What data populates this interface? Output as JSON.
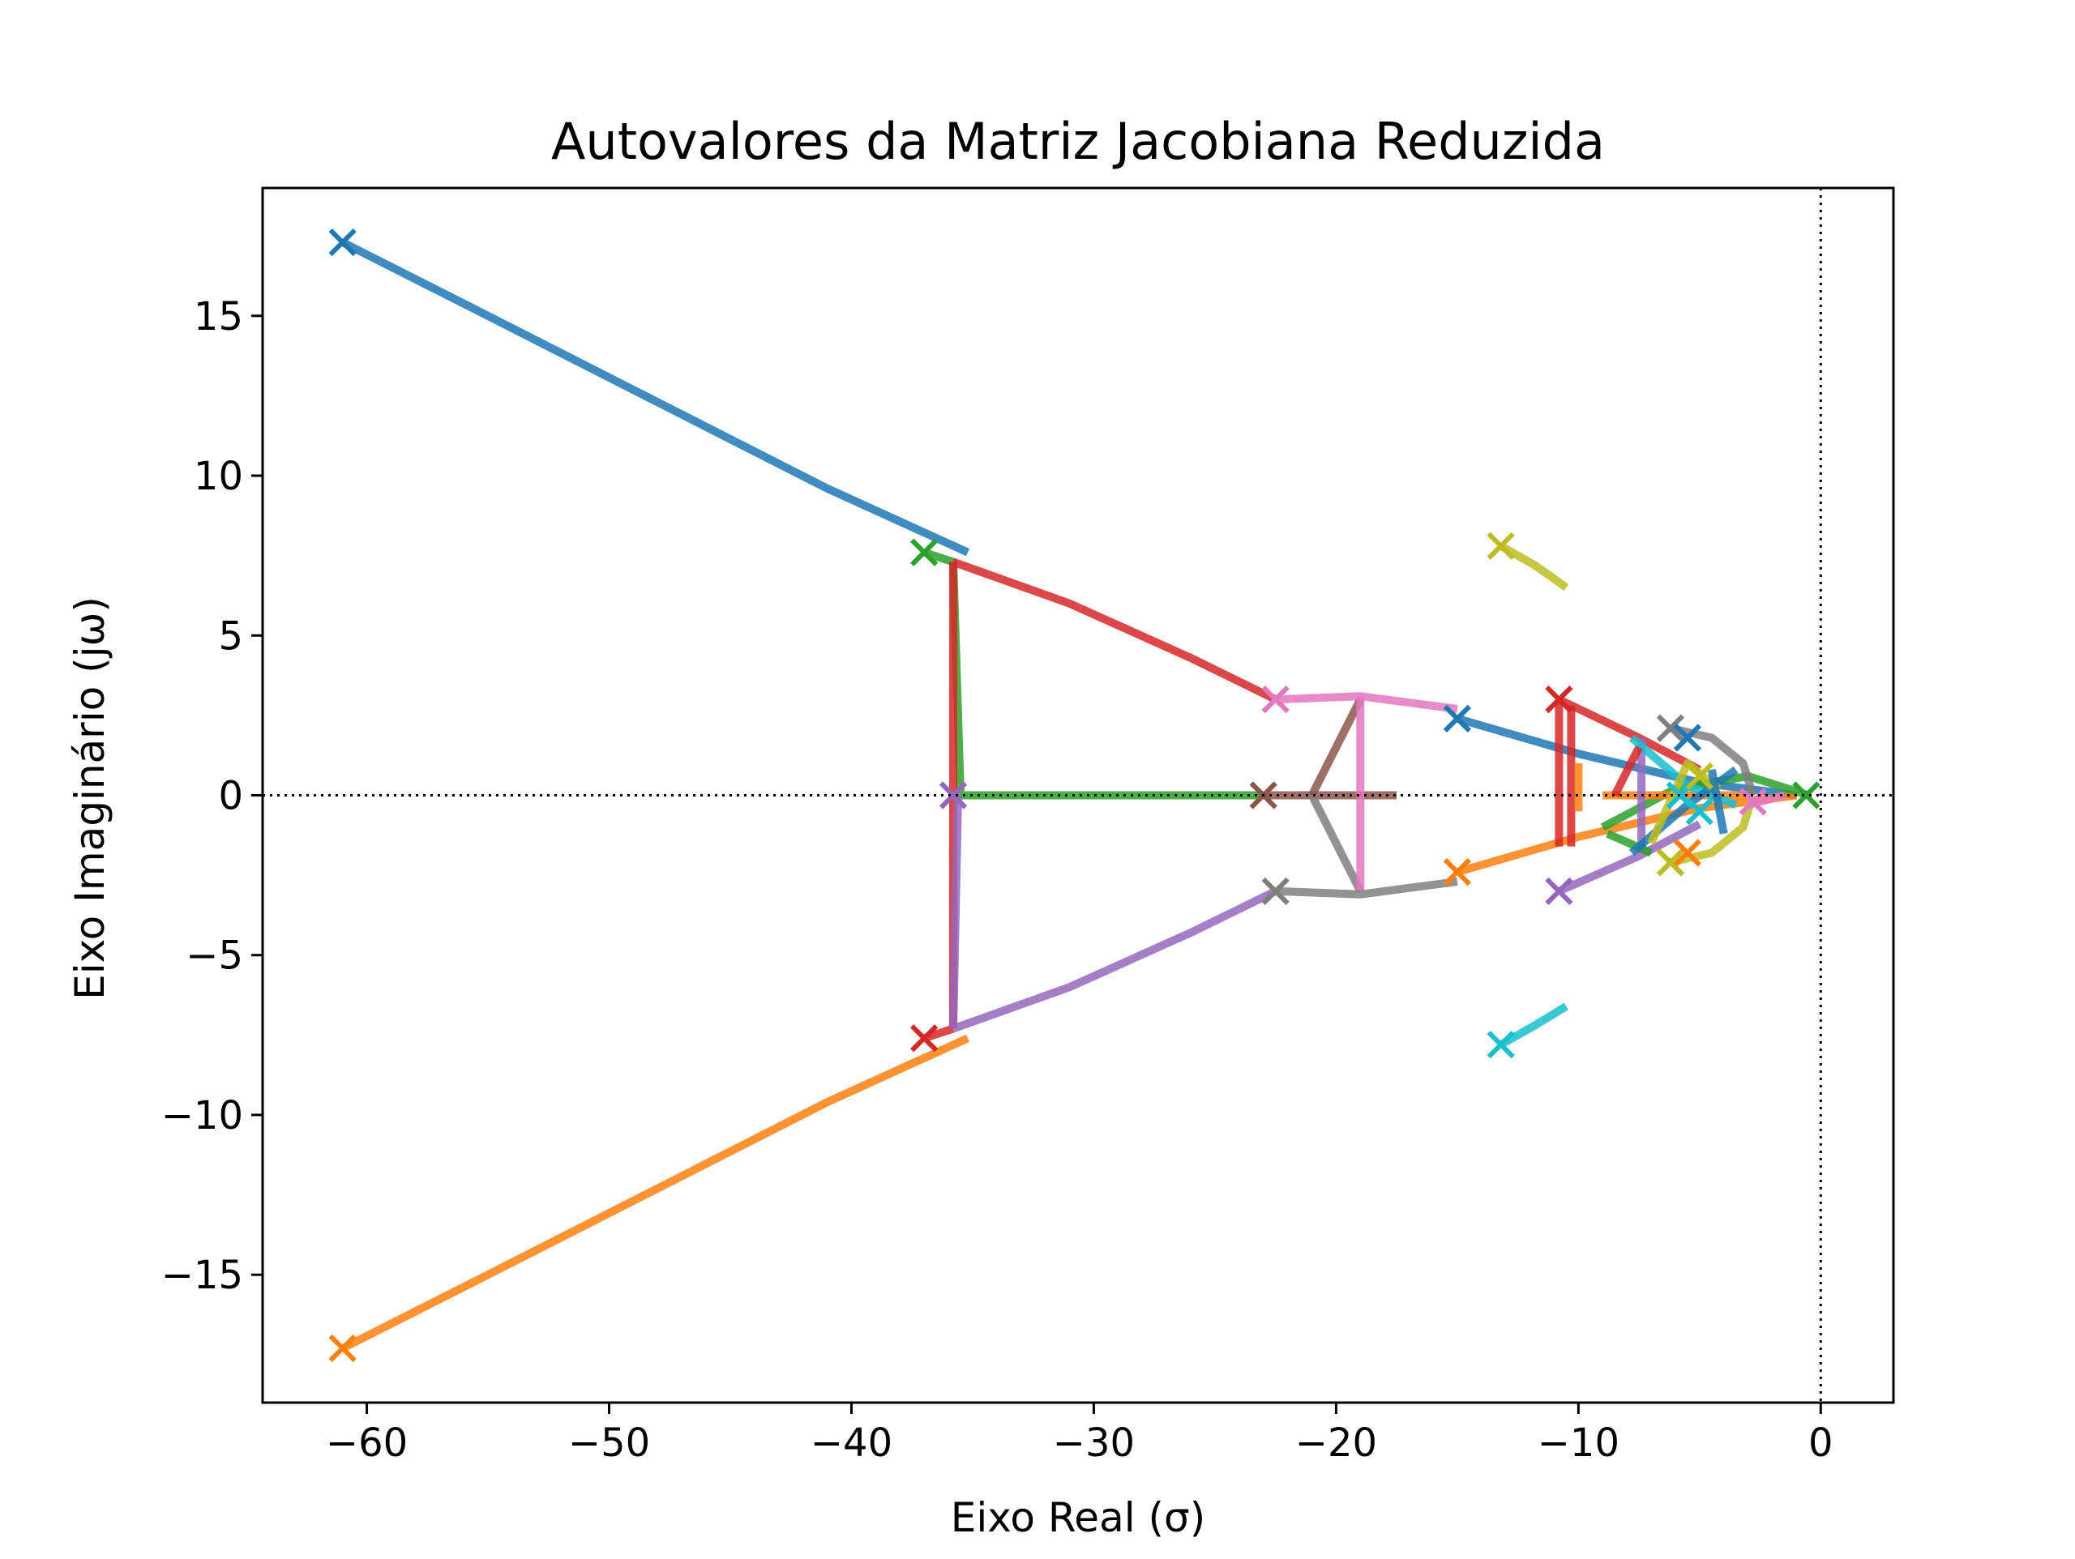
{
  "chart_data": {
    "type": "line",
    "title": "Autovalores da Matriz Jacobiana Reduzida",
    "xlabel": "Eixo Real (σ)",
    "ylabel": "Eixo Imaginário (jω)",
    "xlim": [
      -64.3,
      3.0
    ],
    "ylim": [
      -19.0,
      19.0
    ],
    "xticks": [
      -60,
      -50,
      -40,
      -30,
      -20,
      -10,
      0
    ],
    "xtick_labels": [
      "−60",
      "−50",
      "−40",
      "−30",
      "−20",
      "−10",
      "0"
    ],
    "yticks": [
      -15,
      -10,
      -5,
      0,
      5,
      10,
      15
    ],
    "ytick_labels": [
      "−15",
      "−10",
      "−5",
      "0",
      "5",
      "10",
      "15"
    ],
    "grid": false,
    "reference_lines": [
      {
        "axis": "y",
        "value": 0,
        "style": "dotted"
      },
      {
        "axis": "x",
        "value": 0,
        "style": "dotted"
      }
    ],
    "colors": [
      "#1f77b4",
      "#ff7f0e",
      "#2ca02c",
      "#d62728",
      "#9467bd",
      "#8c564b",
      "#e377c2",
      "#7f7f7f",
      "#bcbd22",
      "#17becf"
    ],
    "series": [
      {
        "color": "#1f77b4",
        "points": [
          [
            -61.0,
            17.3
          ],
          [
            -55.0,
            15.0
          ],
          [
            -48.0,
            12.3
          ],
          [
            -41.0,
            9.6
          ],
          [
            -35.2,
            7.6
          ]
        ]
      },
      {
        "color": "#ff7f0e",
        "points": [
          [
            -61.0,
            -17.3
          ],
          [
            -55.0,
            -15.0
          ],
          [
            -48.0,
            -12.3
          ],
          [
            -41.0,
            -9.6
          ],
          [
            -35.2,
            -7.6
          ]
        ]
      },
      {
        "color": "#2ca02c",
        "points": [
          [
            -37.0,
            7.6
          ],
          [
            -35.8,
            7.3
          ],
          [
            -35.5,
            0.0
          ],
          [
            -23.0,
            0.0
          ]
        ]
      },
      {
        "color": "#d62728",
        "points": [
          [
            -35.8,
            7.3
          ],
          [
            -35.8,
            -7.3
          ]
        ]
      },
      {
        "color": "#d62728",
        "points": [
          [
            -35.8,
            7.3
          ],
          [
            -31.0,
            6.0
          ],
          [
            -26.0,
            4.3
          ],
          [
            -22.5,
            3.0
          ]
        ]
      },
      {
        "color": "#d62728",
        "points": [
          [
            -37.0,
            -7.6
          ],
          [
            -35.8,
            -7.3
          ]
        ]
      },
      {
        "color": "#9467bd",
        "points": [
          [
            -35.8,
            -7.3
          ],
          [
            -35.6,
            0.0
          ]
        ]
      },
      {
        "color": "#9467bd",
        "points": [
          [
            -35.8,
            -7.3
          ],
          [
            -31.0,
            -6.0
          ],
          [
            -26.0,
            -4.3
          ],
          [
            -22.5,
            -3.0
          ]
        ]
      },
      {
        "color": "#8c564b",
        "points": [
          [
            -23.0,
            0.0
          ],
          [
            -17.5,
            0.0
          ]
        ]
      },
      {
        "color": "#8c564b",
        "points": [
          [
            -21.0,
            0.0
          ],
          [
            -19.0,
            3.0
          ]
        ]
      },
      {
        "color": "#7f7f7f",
        "points": [
          [
            -21.0,
            0.0
          ],
          [
            -19.0,
            -3.0
          ]
        ]
      },
      {
        "color": "#e377c2",
        "points": [
          [
            -22.5,
            3.0
          ],
          [
            -19.0,
            3.1
          ],
          [
            -15.0,
            2.7
          ]
        ]
      },
      {
        "color": "#e377c2",
        "points": [
          [
            -19.0,
            3.1
          ],
          [
            -19.0,
            -3.0
          ]
        ]
      },
      {
        "color": "#7f7f7f",
        "points": [
          [
            -22.5,
            -3.0
          ],
          [
            -19.0,
            -3.1
          ],
          [
            -15.0,
            -2.7
          ]
        ]
      },
      {
        "color": "#1f77b4",
        "points": [
          [
            -15.0,
            2.4
          ],
          [
            -10.0,
            1.3
          ],
          [
            -5.0,
            0.4
          ],
          [
            -1.0,
            0.0
          ]
        ]
      },
      {
        "color": "#ff7f0e",
        "points": [
          [
            -15.0,
            -2.4
          ],
          [
            -10.0,
            -1.3
          ],
          [
            -5.0,
            -0.4
          ],
          [
            -1.0,
            0.0
          ]
        ]
      },
      {
        "color": "#bcbd22",
        "points": [
          [
            -13.2,
            7.8
          ],
          [
            -11.8,
            7.2
          ],
          [
            -10.5,
            6.5
          ]
        ]
      },
      {
        "color": "#17becf",
        "points": [
          [
            -13.2,
            -7.8
          ],
          [
            -11.8,
            -7.2
          ],
          [
            -10.5,
            -6.6
          ]
        ]
      },
      {
        "color": "#d62728",
        "points": [
          [
            -10.8,
            3.0
          ],
          [
            -10.8,
            -1.6
          ]
        ]
      },
      {
        "color": "#d62728",
        "points": [
          [
            -10.3,
            2.8
          ],
          [
            -10.3,
            -1.6
          ]
        ]
      },
      {
        "color": "#d62728",
        "points": [
          [
            -10.8,
            3.0
          ],
          [
            -7.5,
            1.8
          ],
          [
            -5.0,
            0.8
          ]
        ]
      },
      {
        "color": "#9467bd",
        "points": [
          [
            -10.8,
            -3.0
          ],
          [
            -7.5,
            -1.9
          ],
          [
            -5.0,
            -0.9
          ]
        ]
      },
      {
        "color": "#ff7f0e",
        "points": [
          [
            -10.0,
            1.0
          ],
          [
            -10.0,
            -0.5
          ]
        ]
      },
      {
        "color": "#2ca02c",
        "points": [
          [
            -9.0,
            -1.0
          ],
          [
            -6.0,
            0.2
          ],
          [
            -3.0,
            0.6
          ],
          [
            -0.5,
            0.0
          ]
        ]
      },
      {
        "color": "#ff7f0e",
        "points": [
          [
            -9.0,
            0.0
          ],
          [
            -3.0,
            0.0
          ]
        ]
      },
      {
        "color": "#7f7f7f",
        "points": [
          [
            -6.2,
            2.1
          ],
          [
            -4.5,
            1.8
          ],
          [
            -3.2,
            1.0
          ],
          [
            -2.8,
            0.0
          ]
        ]
      },
      {
        "color": "#bcbd22",
        "points": [
          [
            -6.2,
            -2.1
          ],
          [
            -4.5,
            -1.8
          ],
          [
            -3.2,
            -1.0
          ],
          [
            -2.8,
            0.0
          ]
        ]
      },
      {
        "color": "#9467bd",
        "points": [
          [
            -7.4,
            1.8
          ],
          [
            -7.4,
            -1.8
          ]
        ]
      },
      {
        "color": "#2ca02c",
        "points": [
          [
            -8.8,
            -1.2
          ],
          [
            -7.0,
            -1.8
          ]
        ]
      },
      {
        "color": "#17becf",
        "points": [
          [
            -7.8,
            1.8
          ],
          [
            -5.5,
            0.3
          ],
          [
            -3.5,
            -0.3
          ]
        ]
      },
      {
        "color": "#1f77b4",
        "points": [
          [
            -7.8,
            -1.8
          ],
          [
            -5.5,
            -0.3
          ],
          [
            -3.5,
            0.8
          ]
        ]
      },
      {
        "color": "#bcbd22",
        "points": [
          [
            -7.0,
            -1.5
          ],
          [
            -5.5,
            1.0
          ],
          [
            -4.2,
            0.2
          ]
        ]
      },
      {
        "color": "#e377c2",
        "points": [
          [
            -3.0,
            -0.3
          ],
          [
            -1.5,
            0.0
          ]
        ]
      },
      {
        "color": "#1f77b4",
        "points": [
          [
            -4.5,
            0.8
          ],
          [
            -4.0,
            -1.2
          ]
        ]
      },
      {
        "color": "#d62728",
        "points": [
          [
            -8.5,
            0.0
          ],
          [
            -7.5,
            1.5
          ]
        ]
      }
    ],
    "markers": [
      {
        "x": -61.0,
        "y": 17.3,
        "color": "#1f77b4"
      },
      {
        "x": -61.0,
        "y": -17.3,
        "color": "#ff7f0e"
      },
      {
        "x": -37.0,
        "y": 7.6,
        "color": "#2ca02c"
      },
      {
        "x": -37.0,
        "y": -7.6,
        "color": "#d62728"
      },
      {
        "x": -35.8,
        "y": 0.0,
        "color": "#9467bd"
      },
      {
        "x": -23.0,
        "y": 0.0,
        "color": "#8c564b"
      },
      {
        "x": -22.5,
        "y": 3.0,
        "color": "#e377c2"
      },
      {
        "x": -22.5,
        "y": -3.0,
        "color": "#7f7f7f"
      },
      {
        "x": -15.0,
        "y": 2.4,
        "color": "#1f77b4"
      },
      {
        "x": -15.0,
        "y": -2.4,
        "color": "#ff7f0e"
      },
      {
        "x": -13.2,
        "y": 7.8,
        "color": "#bcbd22"
      },
      {
        "x": -13.2,
        "y": -7.8,
        "color": "#17becf"
      },
      {
        "x": -10.8,
        "y": 3.0,
        "color": "#d62728"
      },
      {
        "x": -10.8,
        "y": -3.0,
        "color": "#9467bd"
      },
      {
        "x": -6.2,
        "y": 2.1,
        "color": "#7f7f7f"
      },
      {
        "x": -6.2,
        "y": -2.1,
        "color": "#bcbd22"
      },
      {
        "x": -5.5,
        "y": 1.8,
        "color": "#1f77b4"
      },
      {
        "x": -5.5,
        "y": -1.8,
        "color": "#ff7f0e"
      },
      {
        "x": -5.8,
        "y": 0.0,
        "color": "#17becf"
      },
      {
        "x": -5.0,
        "y": 0.6,
        "color": "#bcbd22"
      },
      {
        "x": -5.0,
        "y": -0.5,
        "color": "#17becf"
      },
      {
        "x": -2.8,
        "y": -0.2,
        "color": "#e377c2"
      },
      {
        "x": -0.6,
        "y": 0.0,
        "color": "#2ca02c"
      }
    ]
  }
}
